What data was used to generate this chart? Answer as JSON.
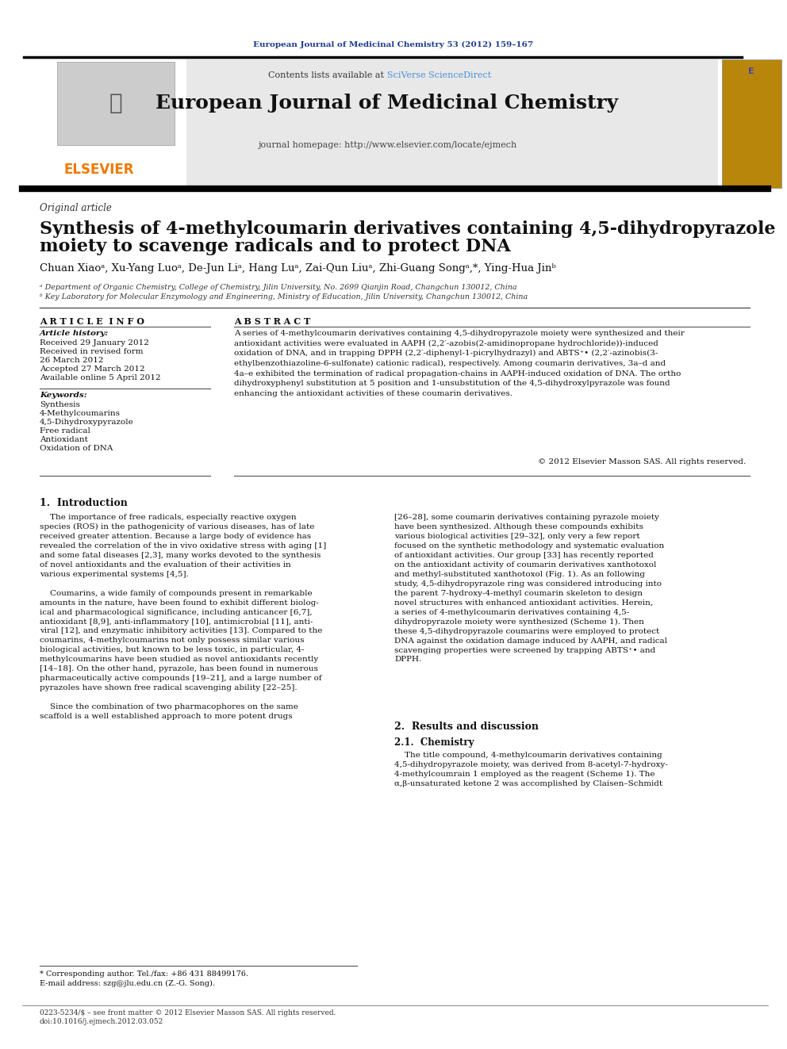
{
  "page_bg": "#ffffff",
  "top_journal_ref": "European Journal of Medicinal Chemistry 53 (2012) 159–167",
  "top_journal_ref_color": "#1a3a8a",
  "header_bg": "#e8e8e8",
  "header_title": "European Journal of Medicinal Chemistry",
  "header_subtitle_left": "Contents lists available at ",
  "header_subtitle_sciverse": "SciVerse ScienceDirect",
  "header_subtitle_sciverse_color": "#4a90d9",
  "header_homepage": "journal homepage: http://www.elsevier.com/locate/ejmech",
  "elsevier_color": "#f07800",
  "article_type": "Original article",
  "title_line1": "Synthesis of 4-methylcoumarin derivatives containing 4,5-dihydropyrazole",
  "title_line2": "moiety to scavenge radicals and to protect DNA",
  "authors": "Chuan Xiaoᵃ, Xu-Yang Luoᵃ, De-Jun Liᵃ, Hang Luᵃ, Zai-Qun Liuᵃ, Zhi-Guang Songᵃ,*, Ying-Hua Jinᵇ",
  "affil_a": "ᵃ Department of Organic Chemistry, College of Chemistry, Jilin University, No. 2699 Qianjin Road, Changchun 130012, China",
  "affil_b": "ᵇ Key Laboratory for Molecular Enzymology and Engineering, Ministry of Education, Jilin University, Changchun 130012, China",
  "article_info_label": "A R T I C L E  I N F O",
  "article_history_label": "Article history:",
  "received": "Received 29 January 2012",
  "revised": "Received in revised form",
  "revised2": "26 March 2012",
  "accepted": "Accepted 27 March 2012",
  "available": "Available online 5 April 2012",
  "keywords_label": "Keywords:",
  "keywords": [
    "Synthesis",
    "4-Methylcoumarins",
    "4,5-Dihydroxypyrazole",
    "Free radical",
    "Antioxidant",
    "Oxidation of DNA"
  ],
  "abstract_label": "A B S T R A C T",
  "abstract_lines": [
    "A series of 4-methylcoumarin derivatives containing 4,5-dihydropyrazole moiety were synthesized and their",
    "antioxidant activities were evaluated in AAPH (2,2′-azobis(2-amidinopropane hydrochloride))-induced",
    "oxidation of DNA, and in trapping DPPH (2,2′-diphenyl-1-picrylhydrazyl) and ABTS⁺• (2,2′-azinobis(3-",
    "ethylbenzothiazoline-6-sulfonate) cationic radical), respectively. Among coumarin derivatives, 3a–d and",
    "4a–e exhibited the termination of radical propagation-chains in AAPH-induced oxidation of DNA. The ortho",
    "dihydroxyphenyl substitution at 5 position and 1-unsubstitution of the 4,5-dihydroxylpyrazole was found",
    "enhancing the antioxidant activities of these coumarin derivatives."
  ],
  "copyright": "© 2012 Elsevier Masson SAS. All rights reserved.",
  "section1_title": "1.  Introduction",
  "intro_left_lines": [
    "    The importance of free radicals, especially reactive oxygen",
    "species (ROS) in the pathogenicity of various diseases, has of late",
    "received greater attention. Because a large body of evidence has",
    "revealed the correlation of the in vivo oxidative stress with aging [1]",
    "and some fatal diseases [2,3], many works devoted to the synthesis",
    "of novel antioxidants and the evaluation of their activities in",
    "various experimental systems [4,5].",
    "",
    "    Coumarins, a wide family of compounds present in remarkable",
    "amounts in the nature, have been found to exhibit different biolog-",
    "ical and pharmacological significance, including anticancer [6,7],",
    "antioxidant [8,9], anti-inflammatory [10], antimicrobial [11], anti-",
    "viral [12], and enzymatic inhibitory activities [13]. Compared to the",
    "coumarins, 4-methylcoumarins not only possess similar various",
    "biological activities, but known to be less toxic, in particular, 4-",
    "methylcoumarins have been studied as novel antioxidants recently",
    "[14–18]. On the other hand, pyrazole, has been found in numerous",
    "pharmaceutically active compounds [19–21], and a large number of",
    "pyrazoles have shown free radical scavenging ability [22–25].",
    "",
    "    Since the combination of two pharmacophores on the same",
    "scaffold is a well established approach to more potent drugs"
  ],
  "intro_right_lines": [
    "[26–28], some coumarin derivatives containing pyrazole moiety",
    "have been synthesized. Although these compounds exhibits",
    "various biological activities [29–32], only very a few report",
    "focused on the synthetic methodology and systematic evaluation",
    "of antioxidant activities. Our group [33] has recently reported",
    "on the antioxidant activity of coumarin derivatives xanthotoxol",
    "and methyl-substituted xanthotoxol (Fig. 1). As an following",
    "study, 4,5-dihydropyrazole ring was considered introducing into",
    "the parent 7-hydroxy-4-methyl coumarin skeleton to design",
    "novel structures with enhanced antioxidant activities. Herein,",
    "a series of 4-methylcoumarin derivatives containing 4,5-",
    "dihydropyrazole moiety were synthesized (Scheme 1). Then",
    "these 4,5-dihydropyrazole coumarins were employed to protect",
    "DNA against the oxidation damage induced by AAPH, and radical",
    "scavenging properties were screened by trapping ABTS⁺• and",
    "DPPH."
  ],
  "section2_title": "2.  Results and discussion",
  "section21_title": "2.1.  Chemistry",
  "results_lines": [
    "    The title compound, 4-methylcoumarin derivatives containing",
    "4,5-dihydropyrazole moiety, was derived from 8-acetyl-7-hydroxy-",
    "4-methylcoumrain 1 employed as the reagent (Scheme 1). The",
    "α,β-unsaturated ketone 2 was accomplished by Claisen–Schmidt"
  ],
  "footer_note": "* Corresponding author. Tel./fax: +86 431 88499176.",
  "footer_email": "E-mail address: szg@jlu.edu.cn (Z.-G. Song).",
  "footer_issn": "0223-5234/$ – see front matter © 2012 Elsevier Masson SAS. All rights reserved.",
  "footer_doi": "doi:10.1016/j.ejmech.2012.03.052"
}
